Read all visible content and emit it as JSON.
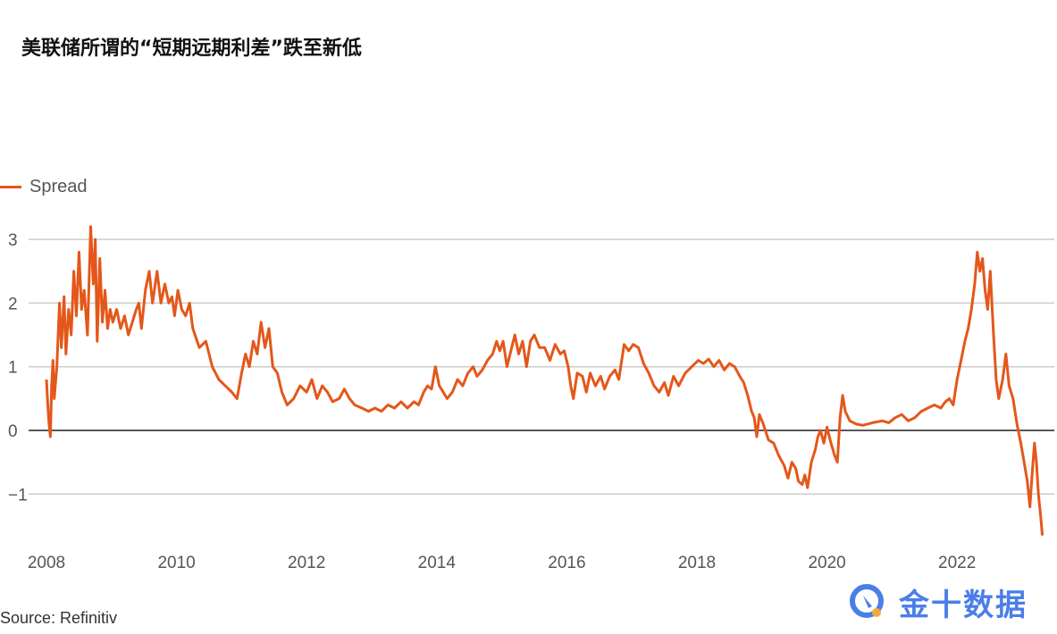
{
  "title": "美联储所谓的“短期远期利差”跌至新低",
  "source": "Source: Refinitiv",
  "logo_text": "金十数据",
  "chart_data": {
    "type": "line",
    "title": "美联储所谓的“短期远期利差”跌至新低",
    "xlabel": "",
    "ylabel": "",
    "xlim": [
      2008,
      2023.3
    ],
    "ylim": [
      -1.7,
      3.3
    ],
    "xticks": [
      "2008",
      "2010",
      "2012",
      "2014",
      "2016",
      "2018",
      "2020",
      "2022"
    ],
    "yticks": [
      "3",
      "2",
      "1",
      "0",
      "-1"
    ],
    "grid": true,
    "legend_position": "top-left",
    "series": [
      {
        "name": "Spread",
        "color": "#e4571a",
        "points": [
          [
            2008.0,
            0.8
          ],
          [
            2008.02,
            0.4
          ],
          [
            2008.04,
            0.1
          ],
          [
            2008.06,
            -0.1
          ],
          [
            2008.08,
            0.7
          ],
          [
            2008.1,
            1.1
          ],
          [
            2008.12,
            0.5
          ],
          [
            2008.16,
            1.0
          ],
          [
            2008.2,
            2.0
          ],
          [
            2008.23,
            1.3
          ],
          [
            2008.27,
            2.1
          ],
          [
            2008.3,
            1.2
          ],
          [
            2008.34,
            1.9
          ],
          [
            2008.38,
            1.5
          ],
          [
            2008.42,
            2.5
          ],
          [
            2008.46,
            1.8
          ],
          [
            2008.5,
            2.8
          ],
          [
            2008.54,
            1.9
          ],
          [
            2008.58,
            2.2
          ],
          [
            2008.63,
            1.5
          ],
          [
            2008.68,
            3.2
          ],
          [
            2008.72,
            2.3
          ],
          [
            2008.75,
            3.0
          ],
          [
            2008.78,
            1.4
          ],
          [
            2008.82,
            2.7
          ],
          [
            2008.86,
            1.7
          ],
          [
            2008.9,
            2.2
          ],
          [
            2008.94,
            1.6
          ],
          [
            2008.98,
            1.9
          ],
          [
            2009.02,
            1.7
          ],
          [
            2009.08,
            1.9
          ],
          [
            2009.14,
            1.6
          ],
          [
            2009.2,
            1.8
          ],
          [
            2009.26,
            1.5
          ],
          [
            2009.32,
            1.7
          ],
          [
            2009.38,
            1.9
          ],
          [
            2009.42,
            2.0
          ],
          [
            2009.46,
            1.6
          ],
          [
            2009.52,
            2.2
          ],
          [
            2009.58,
            2.5
          ],
          [
            2009.63,
            2.0
          ],
          [
            2009.7,
            2.5
          ],
          [
            2009.76,
            2.0
          ],
          [
            2009.82,
            2.3
          ],
          [
            2009.88,
            2.0
          ],
          [
            2009.93,
            2.1
          ],
          [
            2009.97,
            1.8
          ],
          [
            2010.02,
            2.2
          ],
          [
            2010.08,
            1.9
          ],
          [
            2010.14,
            1.8
          ],
          [
            2010.2,
            2.0
          ],
          [
            2010.25,
            1.6
          ],
          [
            2010.35,
            1.3
          ],
          [
            2010.45,
            1.4
          ],
          [
            2010.55,
            1.0
          ],
          [
            2010.65,
            0.8
          ],
          [
            2010.75,
            0.7
          ],
          [
            2010.85,
            0.6
          ],
          [
            2010.93,
            0.5
          ],
          [
            2011.0,
            0.9
          ],
          [
            2011.06,
            1.2
          ],
          [
            2011.12,
            1.0
          ],
          [
            2011.18,
            1.4
          ],
          [
            2011.24,
            1.2
          ],
          [
            2011.3,
            1.7
          ],
          [
            2011.36,
            1.3
          ],
          [
            2011.42,
            1.6
          ],
          [
            2011.48,
            1.0
          ],
          [
            2011.55,
            0.9
          ],
          [
            2011.62,
            0.6
          ],
          [
            2011.7,
            0.4
          ],
          [
            2011.8,
            0.5
          ],
          [
            2011.9,
            0.7
          ],
          [
            2012.0,
            0.6
          ],
          [
            2012.08,
            0.8
          ],
          [
            2012.16,
            0.5
          ],
          [
            2012.24,
            0.7
          ],
          [
            2012.32,
            0.6
          ],
          [
            2012.4,
            0.45
          ],
          [
            2012.5,
            0.5
          ],
          [
            2012.58,
            0.65
          ],
          [
            2012.66,
            0.5
          ],
          [
            2012.74,
            0.4
          ],
          [
            2012.85,
            0.35
          ],
          [
            2012.95,
            0.3
          ],
          [
            2013.05,
            0.35
          ],
          [
            2013.15,
            0.3
          ],
          [
            2013.25,
            0.4
          ],
          [
            2013.35,
            0.35
          ],
          [
            2013.45,
            0.45
          ],
          [
            2013.55,
            0.35
          ],
          [
            2013.65,
            0.45
          ],
          [
            2013.72,
            0.4
          ],
          [
            2013.8,
            0.6
          ],
          [
            2013.86,
            0.7
          ],
          [
            2013.92,
            0.65
          ],
          [
            2013.98,
            1.0
          ],
          [
            2014.04,
            0.7
          ],
          [
            2014.1,
            0.6
          ],
          [
            2014.16,
            0.5
          ],
          [
            2014.24,
            0.6
          ],
          [
            2014.32,
            0.8
          ],
          [
            2014.4,
            0.7
          ],
          [
            2014.48,
            0.9
          ],
          [
            2014.56,
            1.0
          ],
          [
            2014.62,
            0.85
          ],
          [
            2014.7,
            0.95
          ],
          [
            2014.78,
            1.1
          ],
          [
            2014.86,
            1.2
          ],
          [
            2014.92,
            1.4
          ],
          [
            2014.97,
            1.25
          ],
          [
            2015.02,
            1.4
          ],
          [
            2015.08,
            1.0
          ],
          [
            2015.14,
            1.25
          ],
          [
            2015.2,
            1.5
          ],
          [
            2015.26,
            1.2
          ],
          [
            2015.32,
            1.4
          ],
          [
            2015.38,
            1.0
          ],
          [
            2015.44,
            1.4
          ],
          [
            2015.5,
            1.5
          ],
          [
            2015.58,
            1.3
          ],
          [
            2015.66,
            1.3
          ],
          [
            2015.74,
            1.1
          ],
          [
            2015.82,
            1.35
          ],
          [
            2015.9,
            1.2
          ],
          [
            2015.96,
            1.25
          ],
          [
            2016.02,
            1.0
          ],
          [
            2016.06,
            0.7
          ],
          [
            2016.1,
            0.5
          ],
          [
            2016.16,
            0.9
          ],
          [
            2016.24,
            0.85
          ],
          [
            2016.3,
            0.6
          ],
          [
            2016.36,
            0.9
          ],
          [
            2016.44,
            0.7
          ],
          [
            2016.52,
            0.85
          ],
          [
            2016.58,
            0.65
          ],
          [
            2016.66,
            0.85
          ],
          [
            2016.74,
            0.95
          ],
          [
            2016.8,
            0.8
          ],
          [
            2016.88,
            1.35
          ],
          [
            2016.95,
            1.25
          ],
          [
            2017.02,
            1.35
          ],
          [
            2017.1,
            1.3
          ],
          [
            2017.18,
            1.05
          ],
          [
            2017.26,
            0.9
          ],
          [
            2017.34,
            0.7
          ],
          [
            2017.42,
            0.6
          ],
          [
            2017.5,
            0.75
          ],
          [
            2017.56,
            0.55
          ],
          [
            2017.64,
            0.85
          ],
          [
            2017.72,
            0.7
          ],
          [
            2017.82,
            0.9
          ],
          [
            2017.92,
            1.0
          ],
          [
            2018.02,
            1.1
          ],
          [
            2018.1,
            1.05
          ],
          [
            2018.18,
            1.12
          ],
          [
            2018.26,
            1.0
          ],
          [
            2018.34,
            1.1
          ],
          [
            2018.42,
            0.95
          ],
          [
            2018.5,
            1.05
          ],
          [
            2018.58,
            1.0
          ],
          [
            2018.66,
            0.85
          ],
          [
            2018.72,
            0.75
          ],
          [
            2018.78,
            0.55
          ],
          [
            2018.84,
            0.3
          ],
          [
            2018.88,
            0.2
          ],
          [
            2018.92,
            -0.1
          ],
          [
            2018.96,
            0.25
          ],
          [
            2019.02,
            0.1
          ],
          [
            2019.1,
            -0.15
          ],
          [
            2019.18,
            -0.2
          ],
          [
            2019.26,
            -0.4
          ],
          [
            2019.34,
            -0.55
          ],
          [
            2019.4,
            -0.75
          ],
          [
            2019.46,
            -0.5
          ],
          [
            2019.52,
            -0.6
          ],
          [
            2019.56,
            -0.8
          ],
          [
            2019.62,
            -0.85
          ],
          [
            2019.66,
            -0.7
          ],
          [
            2019.7,
            -0.9
          ],
          [
            2019.76,
            -0.5
          ],
          [
            2019.82,
            -0.3
          ],
          [
            2019.86,
            -0.1
          ],
          [
            2019.9,
            0.0
          ],
          [
            2019.95,
            -0.2
          ],
          [
            2020.0,
            0.05
          ],
          [
            2020.06,
            -0.2
          ],
          [
            2020.12,
            -0.4
          ],
          [
            2020.16,
            -0.5
          ],
          [
            2020.2,
            0.2
          ],
          [
            2020.24,
            0.55
          ],
          [
            2020.28,
            0.3
          ],
          [
            2020.35,
            0.15
          ],
          [
            2020.45,
            0.1
          ],
          [
            2020.55,
            0.08
          ],
          [
            2020.7,
            0.12
          ],
          [
            2020.85,
            0.15
          ],
          [
            2020.95,
            0.12
          ],
          [
            2021.05,
            0.2
          ],
          [
            2021.15,
            0.25
          ],
          [
            2021.25,
            0.15
          ],
          [
            2021.35,
            0.2
          ],
          [
            2021.45,
            0.3
          ],
          [
            2021.55,
            0.35
          ],
          [
            2021.65,
            0.4
          ],
          [
            2021.75,
            0.35
          ],
          [
            2021.82,
            0.45
          ],
          [
            2021.88,
            0.5
          ],
          [
            2021.94,
            0.4
          ],
          [
            2022.0,
            0.8
          ],
          [
            2022.06,
            1.1
          ],
          [
            2022.12,
            1.4
          ],
          [
            2022.17,
            1.6
          ],
          [
            2022.22,
            1.9
          ],
          [
            2022.27,
            2.3
          ],
          [
            2022.31,
            2.8
          ],
          [
            2022.35,
            2.5
          ],
          [
            2022.39,
            2.7
          ],
          [
            2022.43,
            2.2
          ],
          [
            2022.47,
            1.9
          ],
          [
            2022.51,
            2.5
          ],
          [
            2022.56,
            1.5
          ],
          [
            2022.6,
            0.8
          ],
          [
            2022.64,
            0.5
          ],
          [
            2022.7,
            0.8
          ],
          [
            2022.75,
            1.2
          ],
          [
            2022.8,
            0.7
          ],
          [
            2022.86,
            0.5
          ],
          [
            2022.92,
            0.1
          ],
          [
            2022.98,
            -0.2
          ],
          [
            2023.03,
            -0.5
          ],
          [
            2023.08,
            -0.8
          ],
          [
            2023.12,
            -1.2
          ],
          [
            2023.16,
            -0.6
          ],
          [
            2023.19,
            -0.2
          ],
          [
            2023.22,
            -0.5
          ],
          [
            2023.25,
            -1.0
          ],
          [
            2023.28,
            -1.3
          ],
          [
            2023.31,
            -1.65
          ]
        ]
      }
    ]
  }
}
